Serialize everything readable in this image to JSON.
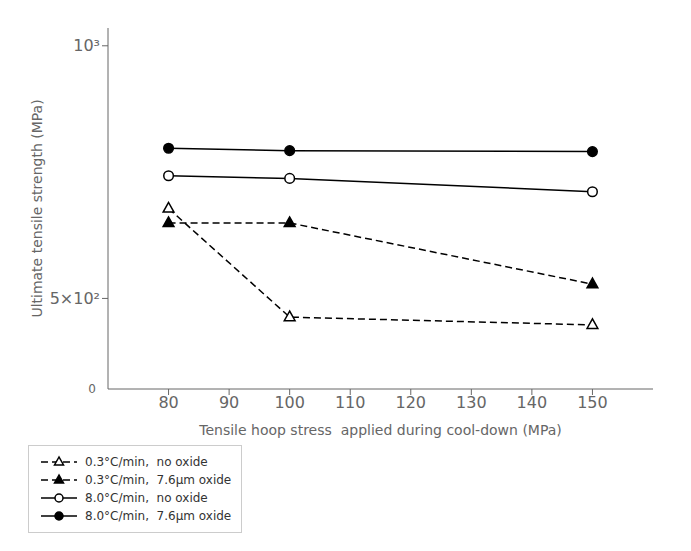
{
  "chart_data": {
    "type": "line",
    "x_label": "Tensile hoop stress  applied during cool-down (MPa)",
    "y_label": "Ultimate tensile strength (MPa)",
    "x": [
      80,
      100,
      150
    ],
    "series": [
      {
        "name": "0.3°C/min,  no oxide",
        "color": "black",
        "marker": "triangle-open",
        "line_style": "dashed",
        "values": [
          640,
          475,
          465
        ]
      },
      {
        "name": "0.3°C/min,  7.6μm oxide",
        "color": "black",
        "marker": "triangle",
        "line_style": "dashed",
        "values": [
          615,
          615,
          520
        ]
      },
      {
        "name": "8.0°C/min,  no oxide",
        "color": "black",
        "marker": "circle-open",
        "line_style": "solid",
        "values": [
          700,
          695,
          670
        ]
      },
      {
        "name": "8.0°C/min,  7.6μm oxide",
        "color": "black",
        "marker": "circle",
        "line_style": "solid",
        "values": [
          755,
          750,
          748
        ]
      }
    ],
    "xlim": [
      70,
      160
    ],
    "xticks": [
      80,
      90,
      100,
      110,
      120,
      130,
      140,
      150
    ],
    "ylim": [
      390,
      1050
    ],
    "yticks": [
      {
        "value": 500,
        "label": "5×10²"
      },
      {
        "value": 1000,
        "label": "10³"
      }
    ],
    "log": "y",
    "grid": false,
    "legend": "lower right",
    "annotations": [
      "0"
    ]
  }
}
